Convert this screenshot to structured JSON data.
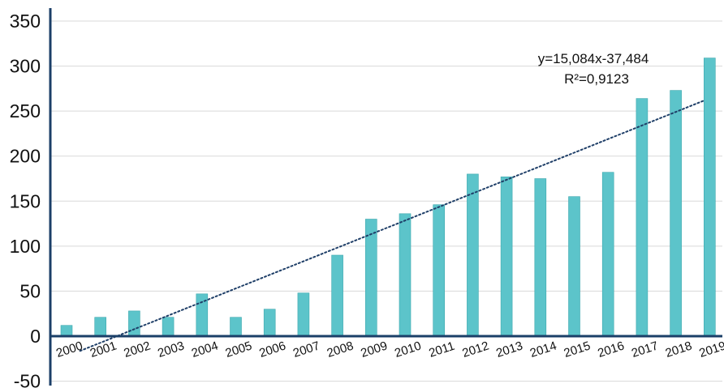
{
  "chart_data": {
    "type": "bar",
    "categories": [
      "2000",
      "2001",
      "2002",
      "2003",
      "2004",
      "2005",
      "2006",
      "2007",
      "2008",
      "2009",
      "2010",
      "2011",
      "2012",
      "2013",
      "2014",
      "2015",
      "2016",
      "2017",
      "2018",
      "2019"
    ],
    "values": [
      12,
      21,
      28,
      21,
      47,
      21,
      30,
      48,
      90,
      130,
      136,
      146,
      180,
      177,
      175,
      155,
      182,
      264,
      273,
      309
    ],
    "y_ticks": [
      "350",
      "300",
      "250",
      "200",
      "150",
      "100",
      "50",
      "0",
      "-50"
    ],
    "ylim": [
      -55,
      360
    ],
    "trendline": {
      "style": "dotted linear",
      "equation": "y=15,084x-37,484",
      "r_squared": "R²=0,9123",
      "slope": 15.084,
      "intercept": -37.484
    },
    "grid": "horizontal",
    "legend": "none",
    "colors": {
      "bar": "#5cc4ca",
      "bar_stroke": "#3ea8ae",
      "trendline": "#1f3f68",
      "axis": "#1b3f68",
      "grid": "#d9d9d9"
    }
  }
}
